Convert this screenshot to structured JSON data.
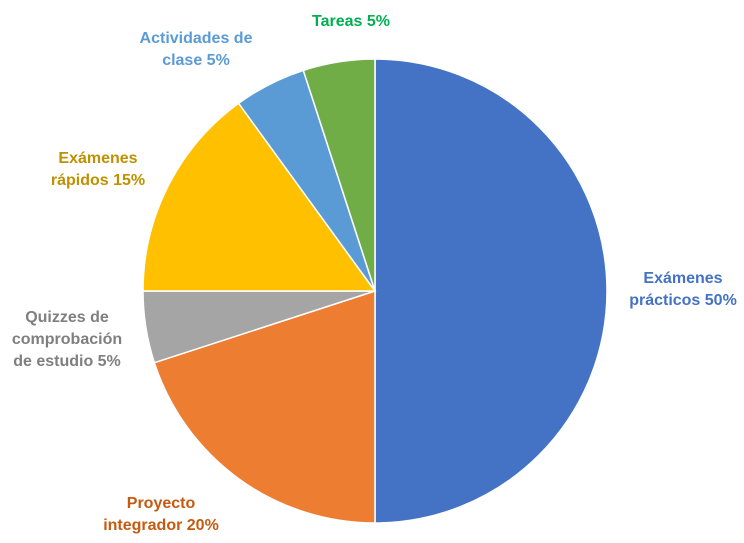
{
  "chart_data": {
    "type": "pie",
    "title": "",
    "slices": [
      {
        "label_lines": [
          "Exámenes",
          "prácticos 50%"
        ],
        "value": 50,
        "color": "#4472C4",
        "label_color": "#4472C4"
      },
      {
        "label_lines": [
          "Proyecto",
          "integrador 20%"
        ],
        "value": 20,
        "color": "#ED7D31",
        "label_color": "#C55A11"
      },
      {
        "label_lines": [
          "Quizzes de",
          "comprobación",
          "de estudio 5%"
        ],
        "value": 5,
        "color": "#A5A5A5",
        "label_color": "#7F7F7F"
      },
      {
        "label_lines": [
          "Exámenes",
          "rápidos 15%"
        ],
        "value": 15,
        "color": "#FFC000",
        "label_color": "#BF9000"
      },
      {
        "label_lines": [
          "Actividades de",
          "clase 5%"
        ],
        "value": 5,
        "color": "#5B9BD5",
        "label_color": "#5B9BD5"
      },
      {
        "label_lines": [
          "Tareas 5%"
        ],
        "value": 5,
        "color": "#70AD47",
        "label_color": "#00B050"
      }
    ]
  }
}
